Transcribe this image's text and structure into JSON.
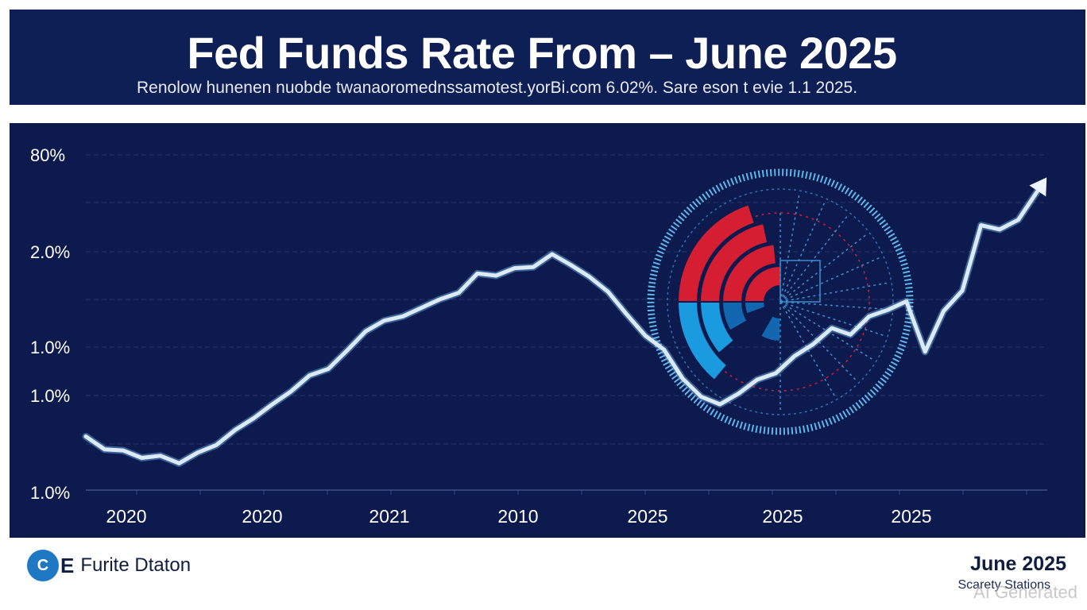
{
  "header": {
    "title": "Fed Funds Rate From – June 2025",
    "subtitle": "Renolow hunenen nuobde twanaoromednssamotest.yorBi.com 6.02%. Sare eson t evie 1.1 2025."
  },
  "footer": {
    "logo_mark": "C",
    "logo_letter": "E",
    "brand": "Furite Dtaton",
    "date": "June 2025",
    "source": "Scarety Stations",
    "watermark": "AI Generated"
  },
  "colors": {
    "header_bg": "#0e1f55",
    "plot_bg": "#0c1a4e",
    "line": "#dce9f7",
    "red": "#d61e32",
    "blue": "#1a9be0",
    "dark_blue": "#1366b0"
  },
  "chart_data": {
    "type": "line",
    "title": "Fed Funds Rate From – June 2025",
    "y_tick_labels": [
      "80%",
      "2.0%",
      "1.0%",
      "1.0%",
      "1.0%"
    ],
    "x_tick_labels": [
      "2020",
      "2020",
      "2021",
      "2010",
      "2025",
      "2025",
      "2025"
    ],
    "grid": true,
    "series": [
      {
        "values": [
          0.5,
          0.38,
          0.37,
          0.3,
          0.32,
          0.25,
          0.35,
          0.42,
          0.56,
          0.67,
          0.8,
          0.92,
          1.07,
          1.13,
          1.3,
          1.48,
          1.58,
          1.62,
          1.7,
          1.78,
          1.84,
          2.02,
          2.0,
          2.07,
          2.08,
          2.2,
          2.1,
          1.99,
          1.85,
          1.64,
          1.44,
          1.31,
          1.04,
          0.87,
          0.8,
          0.9,
          1.03,
          1.09,
          1.25,
          1.36,
          1.51,
          1.45,
          1.62,
          1.68,
          1.76,
          1.29,
          1.67,
          1.86,
          2.47,
          2.43,
          2.52,
          2.78
        ]
      }
    ]
  }
}
